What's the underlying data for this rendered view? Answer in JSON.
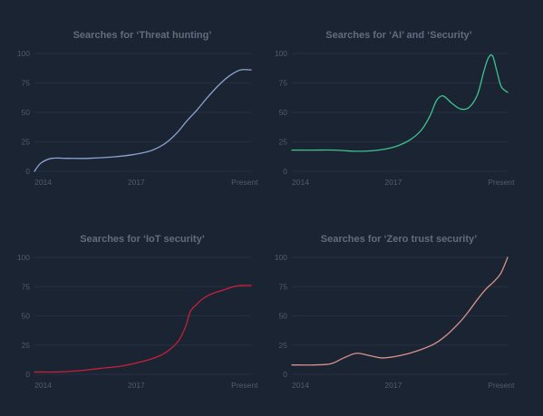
{
  "colors": {
    "background": "#1b2433",
    "grid": "#243042",
    "title_text": "#5f6d7f",
    "tick_text": "#4f5c6e"
  },
  "chart_data": [
    {
      "type": "line",
      "title": "Searches for ‘Threat hunting’",
      "x_tick_labels": [
        "2014",
        "2017",
        "Present"
      ],
      "y_ticks": [
        0,
        25,
        50,
        75,
        100
      ],
      "ylim": [
        0,
        100
      ],
      "xlim": [
        0,
        1
      ],
      "grid": true,
      "color": "#8ba3cf",
      "x": [
        0,
        0.03,
        0.08,
        0.15,
        0.25,
        0.35,
        0.45,
        0.53,
        0.58,
        0.62,
        0.66,
        0.7,
        0.75,
        0.8,
        0.85,
        0.9,
        0.95,
        1.0
      ],
      "values": [
        0,
        7,
        11,
        11,
        11,
        12,
        14,
        17,
        21,
        26,
        33,
        42,
        52,
        63,
        73,
        81,
        86,
        86
      ]
    },
    {
      "type": "line",
      "title": "Searches for ‘AI’ and ‘Security’",
      "x_tick_labels": [
        "2014",
        "2017",
        "Present"
      ],
      "y_ticks": [
        0,
        25,
        50,
        75,
        100
      ],
      "ylim": [
        0,
        100
      ],
      "xlim": [
        0,
        1
      ],
      "grid": true,
      "color": "#3ec48f",
      "x": [
        0,
        0.1,
        0.2,
        0.3,
        0.4,
        0.48,
        0.55,
        0.6,
        0.64,
        0.67,
        0.7,
        0.74,
        0.78,
        0.82,
        0.86,
        0.89,
        0.91,
        0.93,
        0.95,
        0.97,
        1.0
      ],
      "values": [
        18,
        18,
        18,
        17,
        18,
        21,
        27,
        35,
        47,
        60,
        64,
        58,
        53,
        54,
        65,
        85,
        96,
        98,
        85,
        72,
        67
      ]
    },
    {
      "type": "line",
      "title": "Searches for ‘IoT security’",
      "x_tick_labels": [
        "2014",
        "2017",
        "Present"
      ],
      "y_ticks": [
        0,
        25,
        50,
        75,
        100
      ],
      "ylim": [
        0,
        100
      ],
      "xlim": [
        0,
        1
      ],
      "grid": true,
      "color": "#c8203a",
      "x": [
        0,
        0.1,
        0.2,
        0.3,
        0.4,
        0.5,
        0.58,
        0.63,
        0.67,
        0.7,
        0.72,
        0.75,
        0.78,
        0.82,
        0.87,
        0.92,
        0.96,
        1.0
      ],
      "values": [
        2,
        2,
        3,
        5,
        7,
        11,
        16,
        22,
        30,
        42,
        54,
        60,
        65,
        69,
        72,
        75,
        76,
        76
      ]
    },
    {
      "type": "line",
      "title": "Searches for ‘Zero trust security’",
      "x_tick_labels": [
        "2014",
        "2017",
        "Present"
      ],
      "y_ticks": [
        0,
        25,
        50,
        75,
        100
      ],
      "ylim": [
        0,
        100
      ],
      "xlim": [
        0,
        1
      ],
      "grid": true,
      "color": "#d9928a",
      "x": [
        0,
        0.1,
        0.18,
        0.24,
        0.3,
        0.36,
        0.42,
        0.5,
        0.58,
        0.66,
        0.72,
        0.78,
        0.82,
        0.86,
        0.9,
        0.94,
        0.97,
        1.0
      ],
      "values": [
        8,
        8,
        9,
        14,
        18,
        16,
        14,
        16,
        20,
        26,
        34,
        45,
        54,
        64,
        73,
        80,
        87,
        100
      ]
    }
  ]
}
